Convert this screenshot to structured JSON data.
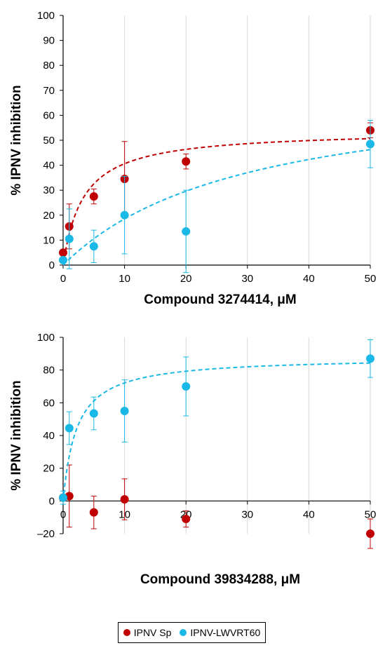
{
  "legend": [
    {
      "name": "IPNV Sp",
      "color": "#c00000"
    },
    {
      "name": "IPNV-LWVRT60",
      "color": "#1ab8e6"
    }
  ],
  "chart_data": [
    {
      "type": "scatter",
      "xlabel": "Compound 3274414, μM",
      "ylabel": "% IPNV inhibition",
      "xlim": [
        0,
        50
      ],
      "ylim": [
        0,
        100
      ],
      "xticks": [
        0,
        10,
        20,
        30,
        40,
        50
      ],
      "yticks": [
        0,
        10,
        20,
        30,
        40,
        50,
        60,
        70,
        80,
        90,
        100
      ],
      "ytick_labels": [
        "0",
        "10",
        "20",
        "30",
        "40",
        "50",
        "60",
        "70",
        "80",
        "90",
        "100"
      ],
      "grid": "vertical",
      "series": [
        {
          "name": "IPNV Sp",
          "color": "#c00000",
          "x": [
            0,
            1,
            5,
            10,
            20,
            50
          ],
          "y": [
            5,
            15.5,
            27.5,
            34.5,
            41.5,
            54
          ],
          "err": [
            1,
            9,
            3,
            15,
            3,
            3
          ],
          "fit": {
            "max": 54,
            "ec50": 3.3
          }
        },
        {
          "name": "IPNV-LWVRT60",
          "color": "#1ab8e6",
          "x": [
            0,
            1,
            5,
            10,
            20,
            50
          ],
          "y": [
            2,
            10.5,
            7.5,
            20,
            13.5,
            48.5
          ],
          "err": [
            1,
            12,
            6.5,
            15.5,
            16.5,
            9.5
          ],
          "fit": {
            "max": 74,
            "ec50": 30
          }
        }
      ]
    },
    {
      "type": "scatter",
      "xlabel": "Compound 39834288, μM",
      "ylabel": "% IPNV inhibition",
      "xlim": [
        0,
        50
      ],
      "ylim": [
        -20,
        100
      ],
      "xticks": [
        0,
        10,
        20,
        30,
        40,
        50
      ],
      "yticks": [
        -20,
        0,
        20,
        40,
        60,
        80,
        100
      ],
      "ytick_labels": [
        "–20",
        "0",
        "20",
        "40",
        "60",
        "80",
        "100"
      ],
      "grid": "vertical",
      "series": [
        {
          "name": "IPNV Sp",
          "color": "#c00000",
          "x": [
            0,
            1,
            5,
            10,
            20,
            50
          ],
          "y": [
            2,
            3,
            -7,
            1,
            -11,
            -20
          ],
          "err": [
            2,
            19,
            10,
            12.5,
            5,
            9
          ],
          "fit": null
        },
        {
          "name": "IPNV-LWVRT60",
          "color": "#1ab8e6",
          "x": [
            0,
            1,
            5,
            10,
            20,
            50
          ],
          "y": [
            2,
            44.5,
            53.5,
            55,
            70,
            87
          ],
          "err": [
            4,
            10,
            10,
            19,
            18,
            11.5
          ],
          "fit": {
            "max": 88,
            "ec50": 2.2
          }
        }
      ]
    }
  ]
}
